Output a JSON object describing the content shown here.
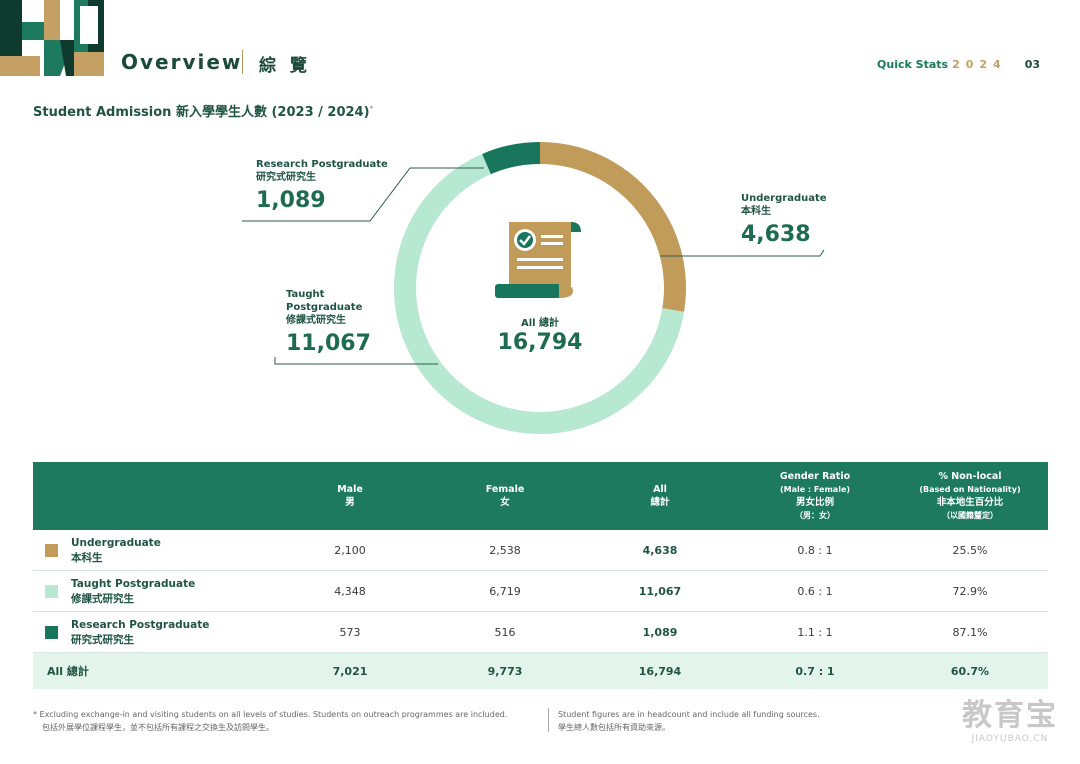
{
  "header": {
    "title": "Overview",
    "title_zh": "綜 覽",
    "quick_stats_label": "Quick Stats",
    "year": "2024",
    "page_number": "03"
  },
  "section": {
    "title": "Student Admission 新入學學生人數 (2023 / 2024)",
    "footnote_mark": "*"
  },
  "donut": {
    "center_label": "All 總計",
    "center_total": "16,794",
    "colors": {
      "undergraduate": "#c19b5a",
      "taught": "#b6e8d2",
      "research": "#17765b"
    },
    "segments": [
      {
        "key": "undergraduate",
        "label_en": "Undergraduate",
        "label_zh": "本科生",
        "value": 4638,
        "display": "4,638"
      },
      {
        "key": "taught",
        "label_en_1": "Taught",
        "label_en_2": "Postgraduate",
        "label_zh": "修課式研究生",
        "value": 11067,
        "display": "11,067"
      },
      {
        "key": "research",
        "label_en": "Research Postgraduate",
        "label_zh": "研究式研究生",
        "value": 1089,
        "display": "1,089"
      }
    ]
  },
  "table": {
    "headers": {
      "male_en": "Male",
      "male_zh": "男",
      "female_en": "Female",
      "female_zh": "女",
      "all_en": "All",
      "all_zh": "總計",
      "ratio_en": "Gender Ratio",
      "ratio_sub": "(Male : Female)",
      "ratio_zh": "男女比例",
      "ratio_zh_sub": "（男：女）",
      "nonlocal_en": "% Non-local",
      "nonlocal_sub": "(Based on Nationality)",
      "nonlocal_zh": "非本地生百分比",
      "nonlocal_zh_sub": "（以國籍釐定）"
    },
    "rows": [
      {
        "label_en": "Undergraduate",
        "label_zh": "本科生",
        "male": "2,100",
        "female": "2,538",
        "all": "4,638",
        "ratio": "0.8 : 1",
        "nonlocal": "25.5%"
      },
      {
        "label_en": "Taught Postgraduate",
        "label_zh": "修課式研究生",
        "male": "4,348",
        "female": "6,719",
        "all": "11,067",
        "ratio": "0.6 : 1",
        "nonlocal": "72.9%"
      },
      {
        "label_en": "Research Postgraduate",
        "label_zh": "研究式研究生",
        "male": "573",
        "female": "516",
        "all": "1,089",
        "ratio": "1.1 : 1",
        "nonlocal": "87.1%"
      }
    ],
    "total": {
      "label": "All 總計",
      "male": "7,021",
      "female": "9,773",
      "all": "16,794",
      "ratio": "0.7 : 1",
      "nonlocal": "60.7%"
    }
  },
  "footer": {
    "left_en": "* Excluding exchange-in and visiting students on all levels of studies. Students on outreach programmes are included.",
    "left_zh": "包括外展學位課程學生，並不包括所有課程之交換生及訪問學生。",
    "right_en": "Student figures are in headcount and include all funding sources.",
    "right_zh": "學生總人數包括所有資助來源。"
  },
  "watermark": {
    "main": "教育宝",
    "sub": "JIAOYUBAO.CN"
  }
}
